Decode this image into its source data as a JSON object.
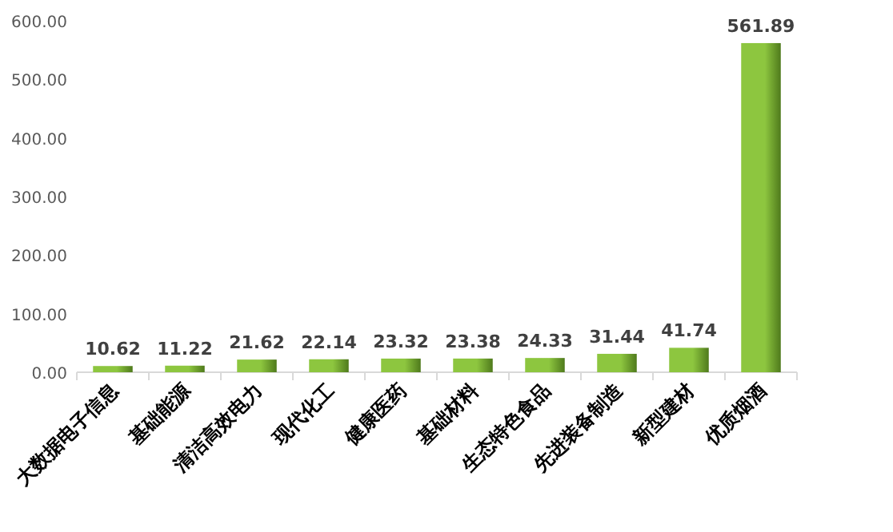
{
  "chart_data": {
    "type": "bar",
    "categories": [
      "大数据电子信息",
      "基础能源",
      "清洁高效电力",
      "现代化工",
      "健康医药",
      "基础材料",
      "生态特色食品",
      "先进装备制造",
      "新型建材",
      "优质烟酒"
    ],
    "values": [
      10.62,
      11.22,
      21.62,
      22.14,
      23.32,
      23.38,
      24.33,
      31.44,
      41.74,
      561.89
    ],
    "color": "#8dc63f",
    "ylim": [
      0,
      600
    ],
    "yticks": [
      {
        "value": 0,
        "label": "0.00"
      },
      {
        "value": 100,
        "label": "100.00"
      },
      {
        "value": 200,
        "label": "200.00"
      },
      {
        "value": 300,
        "label": "300.00"
      },
      {
        "value": 400,
        "label": "400.00"
      },
      {
        "value": 500,
        "label": "500.00"
      },
      {
        "value": 600,
        "label": "600.00"
      }
    ],
    "data_labels": true,
    "grid": false
  }
}
